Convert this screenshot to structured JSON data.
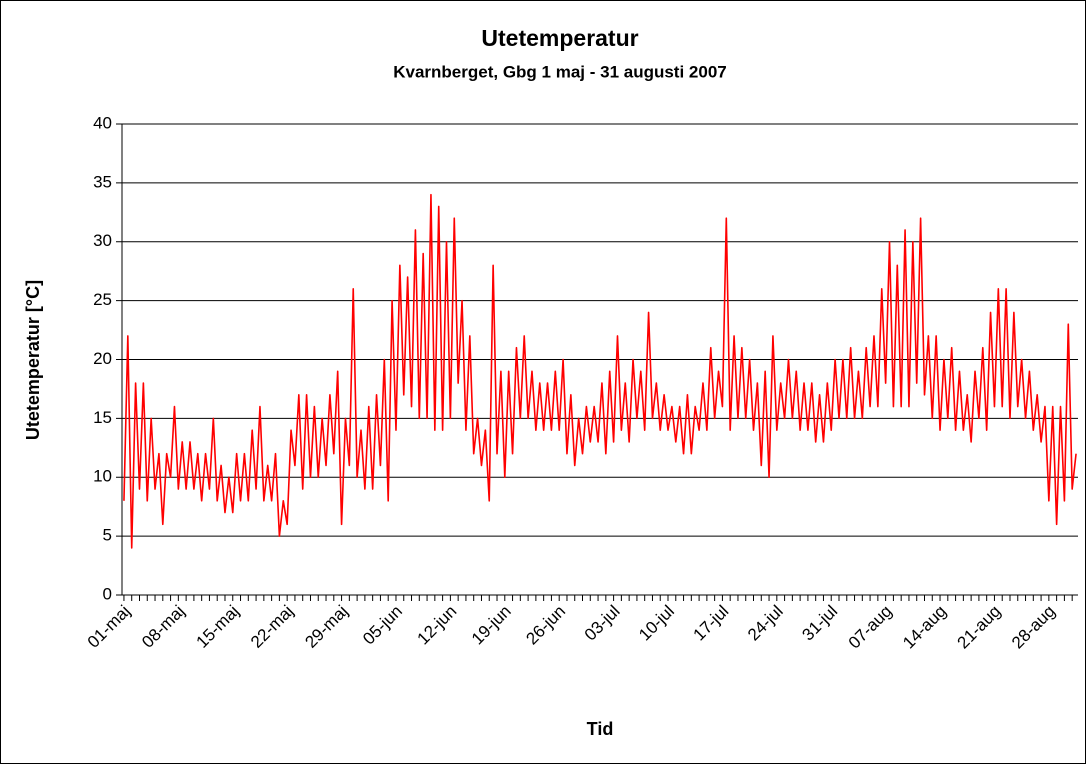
{
  "chart_data": {
    "type": "line",
    "title": "Utetemperatur",
    "subtitle": "Kvarnberget, Gbg 1 maj - 31 augusti 2007",
    "xlabel": "Tid",
    "ylabel": "Utetemperatur [°C]",
    "color": "#ff0000",
    "ylim": [
      0,
      40
    ],
    "yticks": [
      0,
      5,
      10,
      15,
      20,
      25,
      30,
      35,
      40
    ],
    "grid": true,
    "categories": [
      "01-maj",
      null,
      null,
      null,
      null,
      null,
      null,
      null,
      null,
      null,
      null,
      null,
      null,
      null,
      "08-maj",
      null,
      null,
      null,
      null,
      null,
      null,
      null,
      null,
      null,
      null,
      null,
      null,
      null,
      "15-maj",
      null,
      null,
      null,
      null,
      null,
      null,
      null,
      null,
      null,
      null,
      null,
      null,
      null,
      "22-maj",
      null,
      null,
      null,
      null,
      null,
      null,
      null,
      null,
      null,
      null,
      null,
      null,
      null,
      "29-maj",
      null,
      null,
      null,
      null,
      null,
      null,
      null,
      null,
      null,
      null,
      null,
      null,
      null,
      "05-jun",
      null,
      null,
      null,
      null,
      null,
      null,
      null,
      null,
      null,
      null,
      null,
      null,
      null,
      "12-jun",
      null,
      null,
      null,
      null,
      null,
      null,
      null,
      null,
      null,
      null,
      null,
      null,
      null,
      "19-jun",
      null,
      null,
      null,
      null,
      null,
      null,
      null,
      null,
      null,
      null,
      null,
      null,
      null,
      "26-jun",
      null,
      null,
      null,
      null,
      null,
      null,
      null,
      null,
      null,
      null,
      null,
      null,
      null,
      "03-jul",
      null,
      null,
      null,
      null,
      null,
      null,
      null,
      null,
      null,
      null,
      null,
      null,
      null,
      "10-jul",
      null,
      null,
      null,
      null,
      null,
      null,
      null,
      null,
      null,
      null,
      null,
      null,
      null,
      "17-jul",
      null,
      null,
      null,
      null,
      null,
      null,
      null,
      null,
      null,
      null,
      null,
      null,
      null,
      "24-jul",
      null,
      null,
      null,
      null,
      null,
      null,
      null,
      null,
      null,
      null,
      null,
      null,
      null,
      "31-jul",
      null,
      null,
      null,
      null,
      null,
      null,
      null,
      null,
      null,
      null,
      null,
      null,
      null,
      "07-aug",
      null,
      null,
      null,
      null,
      null,
      null,
      null,
      null,
      null,
      null,
      null,
      null,
      null,
      "14-aug",
      null,
      null,
      null,
      null,
      null,
      null,
      null,
      null,
      null,
      null,
      null,
      null,
      null,
      "21-aug",
      null,
      null,
      null,
      null,
      null,
      null,
      null,
      null,
      null,
      null,
      null,
      null,
      null,
      "28-aug",
      null,
      null,
      null,
      null,
      null,
      null,
      null
    ],
    "values": [
      8,
      22,
      4,
      18,
      9,
      18,
      8,
      15,
      9,
      12,
      6,
      12,
      10,
      16,
      9,
      13,
      9,
      13,
      9,
      12,
      8,
      12,
      9,
      15,
      8,
      11,
      7,
      10,
      7,
      12,
      8,
      12,
      8,
      14,
      9,
      16,
      8,
      11,
      8,
      12,
      5,
      8,
      6,
      14,
      11,
      17,
      9,
      17,
      10,
      16,
      10,
      15,
      11,
      17,
      12,
      19,
      6,
      15,
      11,
      26,
      10,
      14,
      9,
      16,
      9,
      17,
      11,
      20,
      8,
      25,
      14,
      28,
      17,
      27,
      16,
      31,
      15,
      29,
      15,
      34,
      14,
      33,
      14,
      30,
      15,
      32,
      18,
      25,
      14,
      22,
      12,
      15,
      11,
      14,
      8,
      28,
      12,
      19,
      10,
      19,
      12,
      21,
      15,
      22,
      15,
      19,
      14,
      18,
      14,
      18,
      14,
      19,
      14,
      20,
      12,
      17,
      11,
      15,
      12,
      16,
      13,
      16,
      13,
      18,
      12,
      19,
      13,
      22,
      14,
      18,
      13,
      20,
      15,
      19,
      14,
      24,
      15,
      18,
      14,
      17,
      14,
      16,
      13,
      16,
      12,
      17,
      12,
      16,
      14,
      18,
      14,
      21,
      15,
      19,
      16,
      32,
      14,
      22,
      15,
      21,
      15,
      20,
      14,
      18,
      11,
      19,
      10,
      22,
      14,
      18,
      15,
      20,
      15,
      19,
      14,
      18,
      14,
      18,
      13,
      17,
      13,
      18,
      14,
      20,
      15,
      20,
      15,
      21,
      15,
      19,
      15,
      21,
      16,
      22,
      16,
      26,
      18,
      30,
      16,
      28,
      16,
      31,
      16,
      30,
      18,
      32,
      17,
      22,
      15,
      22,
      14,
      20,
      15,
      21,
      14,
      19,
      14,
      17,
      13,
      19,
      15,
      21,
      14,
      24,
      16,
      26,
      16,
      26,
      15,
      24,
      16,
      20,
      15,
      19,
      14,
      17,
      13,
      16,
      8,
      16,
      6,
      16,
      8,
      23,
      9,
      12
    ]
  }
}
